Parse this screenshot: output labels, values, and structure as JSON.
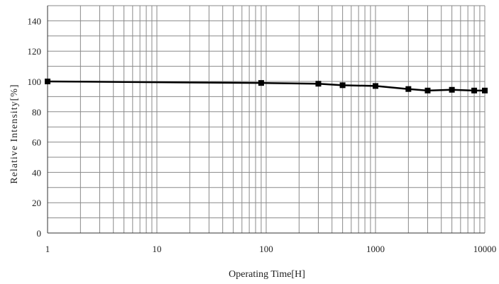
{
  "chart_data": {
    "type": "line",
    "xlabel": "Operating Time[H]",
    "ylabel": "Relative Intensity[%]",
    "xscale": "log",
    "xlim": [
      1,
      10000
    ],
    "ylim": [
      0,
      150
    ],
    "x_ticks": [
      1,
      10,
      100,
      1000,
      10000
    ],
    "x_tick_labels": [
      "1",
      "10",
      "100",
      "1000",
      "10000"
    ],
    "y_ticks": [
      0,
      20,
      40,
      60,
      80,
      100,
      120,
      140
    ],
    "y_tick_labels": [
      "0",
      "20",
      "40",
      "60",
      "80",
      "100",
      "120",
      "140"
    ],
    "y_minor_step": 10,
    "grid": true,
    "legend": "none",
    "series": [
      {
        "x": [
          1,
          90,
          300,
          500,
          1000,
          2000,
          3000,
          5000,
          8000,
          10000
        ],
        "y": [
          100,
          99,
          98.5,
          97.5,
          97,
          95,
          94,
          94.5,
          94,
          94
        ]
      }
    ]
  }
}
